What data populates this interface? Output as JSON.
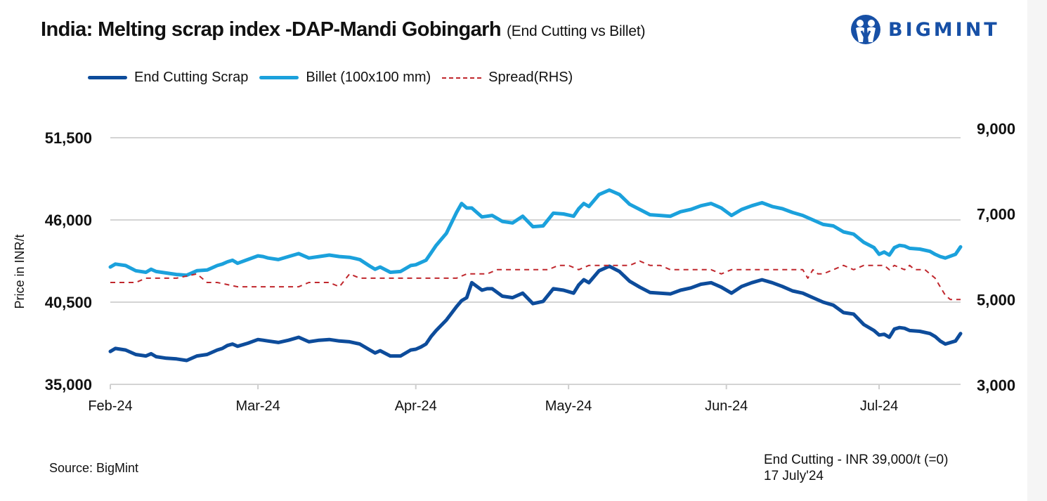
{
  "header": {
    "title": "India: Melting scrap index -DAP-Mandi Gobingarh",
    "subtitle": "(End Cutting vs Billet)"
  },
  "logo": {
    "text": "BIGMINT",
    "icon": "bigmint-people-logo-icon",
    "color": "#1750a6"
  },
  "legend": [
    {
      "label": "End Cutting Scrap",
      "color": "#0d4c9b",
      "style": "solid"
    },
    {
      "label": "Billet (100x100 mm)",
      "color": "#1ba1dc",
      "style": "solid"
    },
    {
      "label": "Spread(RHS)",
      "color": "#c0272d",
      "style": "dashed"
    }
  ],
  "footer": {
    "source": "Source: BigMint",
    "note_line1": "End Cutting - INR 39,000/t (=0)",
    "note_line2": "17 July'24"
  },
  "chart_data": {
    "type": "line",
    "title": "India: Melting scrap index -DAP-Mandi Gobingarh (End Cutting vs Billet)",
    "xlabel": "",
    "ylabel": "Price in INR/t",
    "y2label": "Spread (RHS)",
    "ylim": [
      35000,
      51500
    ],
    "y2lim": [
      3000,
      9000
    ],
    "yticks": [
      "35,000",
      "40,500",
      "46,000",
      "51,500"
    ],
    "yticks_values": [
      35000,
      40500,
      46000,
      51500
    ],
    "y2ticks": [
      "3,000",
      "5,000",
      "7,000",
      "9,000"
    ],
    "y2ticks_values": [
      3000,
      5000,
      7000,
      9000
    ],
    "x_categories": [
      "Feb-24",
      "Mar-24",
      "Apr-24",
      "May-24",
      "Jun-24",
      "Jul-24"
    ],
    "x_range_days": [
      0,
      167
    ],
    "x_tick_days": [
      0,
      29,
      60,
      90,
      121,
      151
    ],
    "grid": true,
    "legend_position": "top-left",
    "series": [
      {
        "name": "End Cutting Scrap",
        "axis": "left",
        "color": "#0d4c9b",
        "days": [
          0,
          1,
          3,
          5,
          7,
          8,
          9,
          11,
          13,
          15,
          17,
          19,
          21,
          22,
          23,
          24,
          25,
          27,
          29,
          30,
          31,
          33,
          35,
          37,
          39,
          41,
          43,
          45,
          47,
          49,
          51,
          52,
          53,
          55,
          57,
          59,
          60,
          61,
          62,
          63,
          64,
          66,
          68,
          69,
          70,
          71,
          73,
          74,
          75,
          77,
          79,
          81,
          83,
          85,
          87,
          89,
          91,
          92,
          93,
          94,
          96,
          98,
          100,
          102,
          104,
          106,
          108,
          110,
          112,
          114,
          116,
          118,
          120,
          122,
          124,
          126,
          128,
          130,
          132,
          134,
          136,
          138,
          140,
          142,
          144,
          146,
          148,
          150,
          151,
          152,
          153,
          154,
          155,
          156,
          157,
          159,
          161,
          162,
          163,
          164,
          166,
          167
        ],
        "values": [
          37200,
          37400,
          37300,
          37000,
          36900,
          37050,
          36850,
          36750,
          36700,
          36600,
          36900,
          37000,
          37300,
          37400,
          37600,
          37700,
          37550,
          37750,
          38000,
          37950,
          37900,
          37800,
          37950,
          38150,
          37850,
          37950,
          38000,
          37900,
          37850,
          37700,
          37300,
          37100,
          37250,
          36900,
          36900,
          37300,
          37350,
          37500,
          37700,
          38200,
          38600,
          39300,
          40200,
          40600,
          40800,
          41800,
          41300,
          41400,
          41400,
          40900,
          40800,
          41100,
          40400,
          40550,
          41400,
          41300,
          41100,
          41650,
          42000,
          41800,
          42600,
          42900,
          42550,
          41900,
          41500,
          41150,
          41100,
          41050,
          41300,
          41450,
          41700,
          41800,
          41500,
          41100,
          41550,
          41800,
          42000,
          41800,
          41550,
          41250,
          41100,
          40800,
          40500,
          40300,
          39800,
          39700,
          39000,
          38600,
          38300,
          38350,
          38150,
          38700,
          38800,
          38750,
          38600,
          38550,
          38400,
          38200,
          37900,
          37700,
          37900,
          38400,
          38900,
          38850
        ]
      },
      {
        "name": "Billet (100x100 mm)",
        "axis": "left",
        "color": "#1ba1dc",
        "days": [
          0,
          1,
          3,
          5,
          7,
          8,
          9,
          11,
          13,
          15,
          17,
          19,
          21,
          22,
          23,
          24,
          25,
          27,
          29,
          30,
          31,
          33,
          35,
          37,
          39,
          41,
          43,
          45,
          47,
          49,
          51,
          52,
          53,
          55,
          57,
          59,
          60,
          61,
          62,
          63,
          64,
          66,
          68,
          69,
          70,
          71,
          73,
          74,
          75,
          77,
          79,
          81,
          83,
          85,
          87,
          89,
          91,
          92,
          93,
          94,
          96,
          98,
          100,
          102,
          104,
          106,
          108,
          110,
          112,
          114,
          116,
          118,
          120,
          122,
          124,
          126,
          128,
          130,
          132,
          134,
          136,
          138,
          140,
          142,
          144,
          146,
          148,
          150,
          151,
          152,
          153,
          154,
          155,
          156,
          157,
          159,
          161,
          162,
          163,
          164,
          166,
          167
        ],
        "values": [
          42850,
          43050,
          42950,
          42600,
          42500,
          42700,
          42550,
          42450,
          42350,
          42300,
          42600,
          42650,
          42950,
          43050,
          43200,
          43300,
          43100,
          43350,
          43600,
          43550,
          43450,
          43350,
          43550,
          43750,
          43450,
          43550,
          43650,
          43550,
          43500,
          43350,
          42900,
          42700,
          42850,
          42500,
          42550,
          42950,
          43000,
          43150,
          43300,
          43800,
          44300,
          45100,
          46500,
          47100,
          46800,
          46800,
          46200,
          46250,
          46300,
          45900,
          45800,
          46250,
          45550,
          45600,
          46450,
          46400,
          46250,
          46750,
          47100,
          46900,
          47700,
          48000,
          47700,
          47050,
          46700,
          46350,
          46300,
          46250,
          46550,
          46700,
          46950,
          47100,
          46800,
          46300,
          46700,
          46950,
          47150,
          46900,
          46750,
          46500,
          46300,
          46000,
          45700,
          45600,
          45200,
          45050,
          44500,
          44150,
          43700,
          43850,
          43650,
          44150,
          44300,
          44250,
          44100,
          44050,
          43900,
          43700,
          43550,
          43450,
          43700,
          44200,
          44450,
          44350
        ]
      },
      {
        "name": "Spread(RHS)",
        "axis": "right",
        "color": "#c0272d",
        "style": "dashed",
        "days": [
          0,
          5,
          7,
          13,
          17,
          19,
          21,
          25,
          27,
          29,
          31,
          33,
          35,
          37,
          39,
          41,
          43,
          45,
          47,
          49,
          51,
          52,
          53,
          55,
          57,
          59,
          60,
          62,
          64,
          66,
          68,
          70,
          72,
          74,
          76,
          78,
          80,
          82,
          84,
          86,
          88,
          90,
          92,
          94,
          96,
          98,
          100,
          102,
          104,
          106,
          108,
          110,
          112,
          114,
          116,
          118,
          120,
          122,
          124,
          126,
          128,
          130,
          132,
          134,
          136,
          137,
          138,
          139,
          140,
          142,
          144,
          146,
          148,
          150,
          152,
          153,
          154,
          156,
          157,
          158,
          160,
          161,
          162,
          163,
          164,
          165,
          166,
          167
        ],
        "values": [
          5400,
          5400,
          5500,
          5500,
          5600,
          5400,
          5400,
          5300,
          5300,
          5300,
          5300,
          5300,
          5300,
          5300,
          5400,
          5400,
          5400,
          5300,
          5600,
          5500,
          5500,
          5500,
          5500,
          5500,
          5500,
          5500,
          5500,
          5500,
          5500,
          5500,
          5500,
          5600,
          5600,
          5600,
          5700,
          5700,
          5700,
          5700,
          5700,
          5700,
          5800,
          5800,
          5700,
          5800,
          5800,
          5800,
          5800,
          5800,
          5900,
          5800,
          5800,
          5700,
          5700,
          5700,
          5700,
          5700,
          5600,
          5700,
          5700,
          5700,
          5700,
          5700,
          5700,
          5700,
          5700,
          5500,
          5700,
          5600,
          5600,
          5700,
          5800,
          5700,
          5800,
          5800,
          5800,
          5700,
          5800,
          5700,
          5800,
          5700,
          5700,
          5600,
          5500,
          5300,
          5100,
          5000,
          5000,
          5000
        ]
      }
    ]
  }
}
